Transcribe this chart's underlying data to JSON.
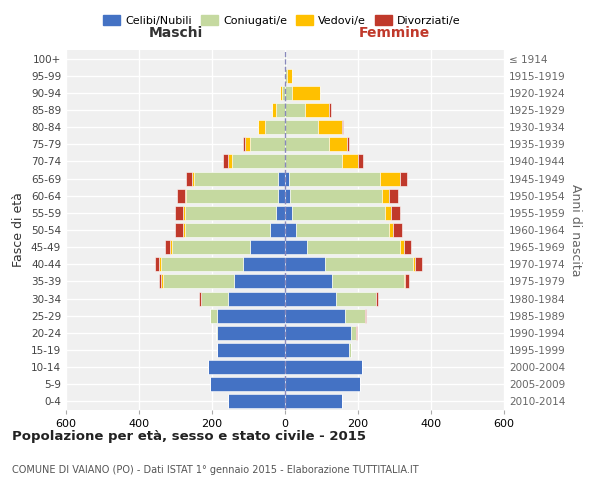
{
  "age_groups": [
    "0-4",
    "5-9",
    "10-14",
    "15-19",
    "20-24",
    "25-29",
    "30-34",
    "35-39",
    "40-44",
    "45-49",
    "50-54",
    "55-59",
    "60-64",
    "65-69",
    "70-74",
    "75-79",
    "80-84",
    "85-89",
    "90-94",
    "95-99",
    "100+"
  ],
  "birth_years": [
    "2010-2014",
    "2005-2009",
    "2000-2004",
    "1995-1999",
    "1990-1994",
    "1985-1989",
    "1980-1984",
    "1975-1979",
    "1970-1974",
    "1965-1969",
    "1960-1964",
    "1955-1959",
    "1950-1954",
    "1945-1949",
    "1940-1944",
    "1935-1939",
    "1930-1934",
    "1925-1929",
    "1920-1924",
    "1915-1919",
    "≤ 1914"
  ],
  "males": {
    "celibi": [
      155,
      205,
      210,
      185,
      185,
      185,
      155,
      140,
      115,
      95,
      40,
      25,
      20,
      20,
      0,
      0,
      0,
      0,
      0,
      0,
      0
    ],
    "coniugati": [
      0,
      0,
      0,
      2,
      5,
      20,
      75,
      195,
      225,
      215,
      235,
      250,
      250,
      230,
      145,
      95,
      55,
      25,
      8,
      3,
      2
    ],
    "vedovi": [
      0,
      0,
      0,
      0,
      0,
      0,
      0,
      5,
      5,
      5,
      5,
      5,
      5,
      5,
      10,
      15,
      20,
      10,
      5,
      0,
      0
    ],
    "divorziati": [
      0,
      0,
      0,
      0,
      0,
      0,
      5,
      5,
      10,
      15,
      20,
      20,
      20,
      15,
      15,
      5,
      0,
      0,
      0,
      0,
      0
    ]
  },
  "females": {
    "nubili": [
      155,
      205,
      210,
      175,
      180,
      165,
      140,
      130,
      110,
      60,
      30,
      20,
      15,
      10,
      0,
      0,
      0,
      0,
      0,
      0,
      0
    ],
    "coniugate": [
      0,
      0,
      0,
      5,
      15,
      55,
      110,
      195,
      240,
      255,
      255,
      255,
      250,
      250,
      155,
      120,
      90,
      55,
      20,
      5,
      2
    ],
    "vedove": [
      0,
      0,
      0,
      0,
      0,
      0,
      0,
      5,
      5,
      10,
      10,
      15,
      20,
      55,
      45,
      50,
      65,
      65,
      75,
      15,
      2
    ],
    "divorziate": [
      0,
      0,
      0,
      0,
      2,
      3,
      5,
      10,
      20,
      20,
      25,
      25,
      25,
      20,
      15,
      5,
      5,
      5,
      0,
      0,
      0
    ]
  },
  "colors": {
    "celibi": "#4472c4",
    "coniugati": "#c5d9a0",
    "vedovi": "#ffc000",
    "divorziati": "#c0392b"
  },
  "legend_labels": [
    "Celibi/Nubili",
    "Coniugati/e",
    "Vedovi/e",
    "Divorziati/e"
  ],
  "title": "Popolazione per età, sesso e stato civile - 2015",
  "subtitle": "COMUNE DI VAIANO (PO) - Dati ISTAT 1° gennaio 2015 - Elaborazione TUTTITALIA.IT",
  "xlabel_left": "Maschi",
  "xlabel_right": "Femmine",
  "ylabel_left": "Fasce di età",
  "ylabel_right": "Anni di nascita",
  "xlim": 600,
  "background_color": "#f0f0f0"
}
